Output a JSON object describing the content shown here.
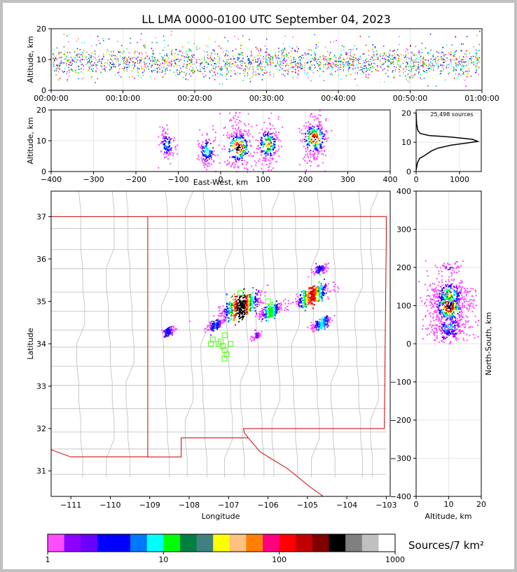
{
  "chart_data": [
    {
      "type": "heatmap",
      "panel": "time-altitude",
      "title": "LL LMA 0000-0100 UTC September 04, 2023",
      "ylabel": "Altitude, km",
      "ylim": [
        0,
        20
      ],
      "yticks": [
        "0",
        "10",
        "20"
      ],
      "xticks": [
        "00:00:00",
        "00:10:00",
        "00:20:00",
        "00:30:00",
        "00:40:00",
        "00:50:00",
        "01:00:00"
      ],
      "xlim_minutes": [
        0,
        60
      ],
      "grid": true
    },
    {
      "type": "heatmap",
      "panel": "east-west-altitude",
      "xlabel": "East-West, km",
      "ylabel": "Altitude, km",
      "xlim": [
        -400,
        400
      ],
      "ylim": [
        0,
        20
      ],
      "xticks": [
        "−400",
        "−300",
        "−200",
        "−100",
        "0",
        "100",
        "200",
        "300",
        "400"
      ],
      "yticks": [
        "0",
        "10",
        "20"
      ],
      "clusters_km": [
        {
          "x": -128,
          "alt": 9,
          "weight": 0.3
        },
        {
          "x": -33,
          "alt": 7,
          "weight": 0.4
        },
        {
          "x": 40,
          "alt": 8,
          "weight": 1.0
        },
        {
          "x": 110,
          "alt": 9,
          "weight": 0.7
        },
        {
          "x": 220,
          "alt": 11,
          "weight": 0.9
        }
      ],
      "grid": true
    },
    {
      "type": "line",
      "panel": "altitude-histogram",
      "annotation": "25,498 sources",
      "xlim": [
        0,
        1500
      ],
      "ylim": [
        0,
        20
      ],
      "xticks": [
        "0",
        "1000"
      ],
      "yticks": [
        "0",
        "10",
        "20"
      ],
      "profile": [
        [
          0,
          0.5
        ],
        [
          30,
          3
        ],
        [
          80,
          4.5
        ],
        [
          200,
          5.5
        ],
        [
          350,
          7
        ],
        [
          500,
          8
        ],
        [
          800,
          9
        ],
        [
          1200,
          9.8
        ],
        [
          1420,
          10.3
        ],
        [
          1300,
          11
        ],
        [
          800,
          11.8
        ],
        [
          300,
          12.3
        ],
        [
          100,
          13
        ],
        [
          40,
          14
        ],
        [
          15,
          16
        ],
        [
          5,
          18
        ],
        [
          0,
          20
        ]
      ],
      "grid": true
    },
    {
      "type": "heatmap",
      "panel": "plan-view-map",
      "xlabel": "Longitude",
      "ylabel": "Latitude",
      "xlim": [
        -111.5,
        -102.9
      ],
      "ylim": [
        30.4,
        37.6
      ],
      "xticks": [
        "−111",
        "−110",
        "−109",
        "−108",
        "−107",
        "−106",
        "−105",
        "−104",
        "−103"
      ],
      "yticks": [
        "31",
        "32",
        "33",
        "34",
        "35",
        "36",
        "37"
      ],
      "station_markers": [
        [
          -106.7,
          35.2
        ],
        [
          -107.1,
          34.2
        ],
        [
          -107.2,
          34.05
        ],
        [
          -107.4,
          34.1
        ],
        [
          -107.45,
          34.0
        ],
        [
          -107.25,
          34.0
        ],
        [
          -107.15,
          33.95
        ],
        [
          -106.95,
          34.0
        ],
        [
          -107.1,
          33.85
        ],
        [
          -107.05,
          33.75
        ],
        [
          -107.1,
          33.65
        ],
        [
          -106.0,
          35.0
        ]
      ],
      "clusters_deg": [
        {
          "lon": -106.7,
          "lat": 34.9,
          "weight": 1.0
        },
        {
          "lon": -105.95,
          "lat": 34.78,
          "weight": 0.45
        },
        {
          "lon": -104.9,
          "lat": 35.15,
          "weight": 0.8
        },
        {
          "lon": -104.65,
          "lat": 34.5,
          "weight": 0.35
        },
        {
          "lon": -107.35,
          "lat": 34.45,
          "weight": 0.25
        },
        {
          "lon": -108.55,
          "lat": 34.3,
          "weight": 0.2
        },
        {
          "lon": -104.7,
          "lat": 35.78,
          "weight": 0.2
        },
        {
          "lon": -106.3,
          "lat": 34.2,
          "weight": 0.1
        }
      ]
    },
    {
      "type": "heatmap",
      "panel": "altitude-north-south",
      "xlabel": "Altitude, km",
      "ylabel": "North-South, km",
      "xlim": [
        0,
        20
      ],
      "ylim": [
        -400,
        400
      ],
      "xticks": [
        "0",
        "10",
        "20"
      ],
      "yticks": [
        "−400",
        "−300",
        "−200",
        "−100",
        "0",
        "100",
        "200",
        "300",
        "400"
      ],
      "grid": true
    },
    {
      "type": "table",
      "panel": "colorbar",
      "label": "Sources/7 km²",
      "scale": "log",
      "ticks": [
        "1",
        "10",
        "100",
        "1000"
      ],
      "colors": [
        "#ff4dff",
        "#8c00ff",
        "#6b00ff",
        "#0000ff",
        "#0000ff",
        "#0078ff",
        "#00ffff",
        "#00ff00",
        "#008040",
        "#408080",
        "#ffff00",
        "#ffc080",
        "#ff8000",
        "#ff0080",
        "#ff0000",
        "#c00000",
        "#800000",
        "#000000",
        "#808080",
        "#c0c0c0",
        "#ffffff"
      ]
    }
  ]
}
